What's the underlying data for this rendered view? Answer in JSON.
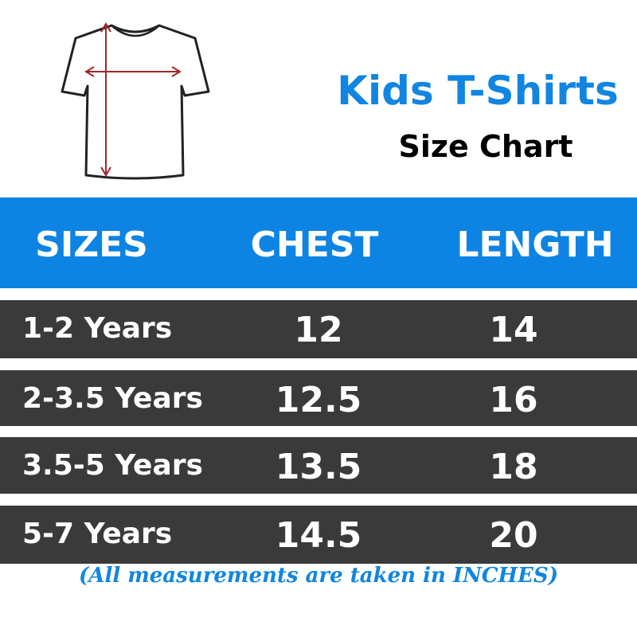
{
  "header": {
    "title": "Kids T-Shirts",
    "subtitle": "Size Chart"
  },
  "table": {
    "columns": [
      "SIZES",
      "CHEST",
      "LENGTH"
    ],
    "rows": [
      [
        "1-2 Years",
        "12",
        "14"
      ],
      [
        "2-3.5 Years",
        "12.5",
        "16"
      ],
      [
        "3.5-5 Years",
        "13.5",
        "18"
      ],
      [
        "5-7 Years",
        "14.5",
        "20"
      ]
    ]
  },
  "footnote": "(All measurements are taken in INCHES)"
}
